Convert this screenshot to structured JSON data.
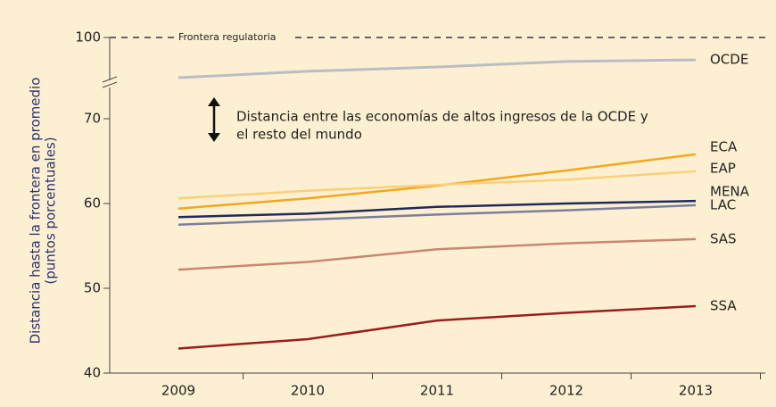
{
  "chart_data": {
    "type": "line",
    "ylabel": [
      "Distancia hasta la frontera en promedio",
      "(puntos porcentuales)"
    ],
    "categories": [
      "2009",
      "2010",
      "2011",
      "2012",
      "2013"
    ],
    "ylim": [
      40,
      73
    ],
    "yticks": [
      40,
      50,
      60,
      70
    ],
    "y2lim": [
      74,
      100
    ],
    "y2ticks": [
      100
    ],
    "frontier": {
      "label": "Frontera regulatoria",
      "value": 100
    },
    "annotation": [
      "Distancia entre las economías de altos ingresos de la OCDE y",
      "el resto del mundo"
    ],
    "series": [
      {
        "name": "OCDE",
        "color": "#b9bdc4",
        "axis": "y2",
        "values": [
          77.9,
          81.4,
          83.8,
          86.8,
          87.7
        ]
      },
      {
        "name": "ECA",
        "color": "#f2a81d",
        "values": [
          59.4,
          60.6,
          62.1,
          63.9,
          65.8
        ]
      },
      {
        "name": "EAP",
        "color": "#fbcf7a",
        "values": [
          60.6,
          61.5,
          62.2,
          62.8,
          63.8
        ]
      },
      {
        "name": "MENA",
        "color": "#1f2a5c",
        "values": [
          58.4,
          58.8,
          59.6,
          60.0,
          60.3
        ]
      },
      {
        "name": "LAC",
        "color": "#7a7f9e",
        "values": [
          57.5,
          58.1,
          58.7,
          59.2,
          59.8
        ]
      },
      {
        "name": "SAS",
        "color": "#c98670",
        "values": [
          52.2,
          53.1,
          54.6,
          55.3,
          55.8
        ]
      },
      {
        "name": "SSA",
        "color": "#9b1c1f",
        "values": [
          42.9,
          44.0,
          46.2,
          47.1,
          47.9
        ]
      }
    ]
  }
}
